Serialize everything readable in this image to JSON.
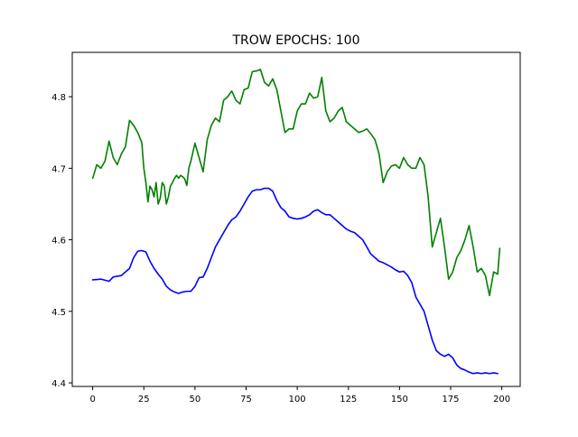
{
  "chart_data": {
    "type": "line",
    "title": "TROW EPOCHS: 100",
    "xlabel": "",
    "ylabel": "",
    "xlim": [
      -10,
      209
    ],
    "ylim": [
      4.395,
      4.862
    ],
    "xticks": [
      0,
      25,
      50,
      75,
      100,
      125,
      150,
      175,
      200
    ],
    "yticks": [
      4.4,
      4.5,
      4.6,
      4.7,
      4.8
    ],
    "grid": false,
    "series": [
      {
        "color": "#008000",
        "x": [
          0,
          2,
          4,
          6,
          8,
          10,
          12,
          14,
          16,
          18,
          20,
          22,
          24,
          25,
          26,
          27,
          28,
          29,
          30,
          31,
          32,
          33,
          34,
          35,
          36,
          37,
          38,
          39,
          40,
          41,
          42,
          43,
          44,
          45,
          46,
          47,
          48,
          50,
          52,
          54,
          56,
          58,
          60,
          62,
          64,
          66,
          68,
          70,
          72,
          74,
          76,
          78,
          80,
          82,
          84,
          86,
          88,
          90,
          92,
          94,
          96,
          98,
          100,
          102,
          104,
          106,
          108,
          110,
          112,
          114,
          116,
          118,
          120,
          122,
          124,
          126,
          128,
          130,
          132,
          134,
          136,
          138,
          140,
          142,
          144,
          146,
          148,
          150,
          152,
          154,
          156,
          158,
          160,
          162,
          164,
          166,
          168,
          170,
          172,
          174,
          176,
          178,
          180,
          182,
          184,
          186,
          188,
          190,
          192,
          194,
          196,
          198,
          199
        ],
        "values": [
          4.686,
          4.705,
          4.7,
          4.71,
          4.738,
          4.715,
          4.705,
          4.72,
          4.73,
          4.767,
          4.76,
          4.75,
          4.736,
          4.7,
          4.68,
          4.653,
          4.675,
          4.67,
          4.66,
          4.68,
          4.65,
          4.658,
          4.68,
          4.675,
          4.65,
          4.66,
          4.675,
          4.68,
          4.686,
          4.69,
          4.686,
          4.69,
          4.688,
          4.685,
          4.676,
          4.7,
          4.71,
          4.735,
          4.715,
          4.695,
          4.74,
          4.76,
          4.77,
          4.765,
          4.795,
          4.8,
          4.808,
          4.795,
          4.79,
          4.81,
          4.812,
          4.835,
          4.836,
          4.838,
          4.82,
          4.815,
          4.825,
          4.81,
          4.78,
          4.75,
          4.755,
          4.755,
          4.78,
          4.79,
          4.79,
          4.805,
          4.798,
          4.8,
          4.827,
          4.78,
          4.765,
          4.77,
          4.78,
          4.785,
          4.765,
          4.76,
          4.755,
          4.75,
          4.752,
          4.755,
          4.748,
          4.74,
          4.72,
          4.68,
          4.695,
          4.703,
          4.705,
          4.7,
          4.715,
          4.705,
          4.7,
          4.7,
          4.715,
          4.705,
          4.66,
          4.59,
          4.61,
          4.63,
          4.59,
          4.545,
          4.555,
          4.575,
          4.585,
          4.6,
          4.62,
          4.59,
          4.555,
          4.56,
          4.55,
          4.522,
          4.555,
          4.552,
          4.588
        ]
      },
      {
        "color": "#0000ff",
        "x": [
          0,
          4,
          8,
          10,
          14,
          18,
          20,
          22,
          24,
          26,
          28,
          30,
          32,
          34,
          36,
          38,
          40,
          42,
          44,
          46,
          48,
          50,
          52,
          54,
          56,
          58,
          60,
          62,
          64,
          66,
          68,
          70,
          72,
          74,
          76,
          78,
          80,
          82,
          84,
          86,
          88,
          90,
          92,
          94,
          96,
          98,
          100,
          102,
          104,
          106,
          108,
          110,
          112,
          114,
          116,
          118,
          120,
          122,
          124,
          126,
          128,
          130,
          132,
          134,
          136,
          138,
          140,
          142,
          144,
          146,
          148,
          150,
          152,
          154,
          156,
          158,
          160,
          162,
          164,
          166,
          168,
          170,
          172,
          174,
          176,
          178,
          180,
          182,
          184,
          186,
          188,
          190,
          192,
          194,
          196,
          198
        ],
        "values": [
          4.544,
          4.545,
          4.542,
          4.548,
          4.55,
          4.56,
          4.575,
          4.584,
          4.585,
          4.583,
          4.57,
          4.56,
          4.552,
          4.545,
          4.535,
          4.53,
          4.527,
          4.525,
          4.527,
          4.528,
          4.528,
          4.535,
          4.547,
          4.548,
          4.56,
          4.575,
          4.59,
          4.6,
          4.61,
          4.62,
          4.628,
          4.632,
          4.64,
          4.65,
          4.66,
          4.668,
          4.67,
          4.67,
          4.672,
          4.672,
          4.668,
          4.655,
          4.645,
          4.64,
          4.632,
          4.63,
          4.629,
          4.63,
          4.632,
          4.635,
          4.64,
          4.642,
          4.638,
          4.635,
          4.635,
          4.63,
          4.625,
          4.62,
          4.615,
          4.612,
          4.61,
          4.605,
          4.6,
          4.59,
          4.58,
          4.575,
          4.57,
          4.568,
          4.565,
          4.562,
          4.558,
          4.555,
          4.556,
          4.55,
          4.54,
          4.52,
          4.51,
          4.5,
          4.48,
          4.46,
          4.445,
          4.44,
          4.437,
          4.44,
          4.435,
          4.425,
          4.42,
          4.418,
          4.415,
          4.413,
          4.414,
          4.413,
          4.414,
          4.413,
          4.414,
          4.413
        ]
      }
    ]
  }
}
